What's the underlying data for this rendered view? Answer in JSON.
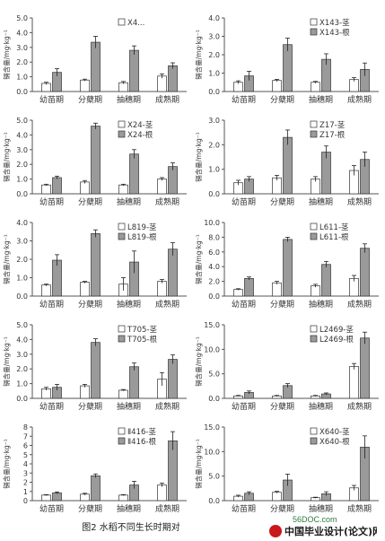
{
  "figure_caption": "图2 水稻不同生长时期对",
  "watermark_site": "56DOC.com",
  "watermark_logo": "中国毕业设计(论文)网",
  "colors": {
    "stem": "#ffffff",
    "root": "#9a9a9a",
    "axis": "#555555",
    "text": "#333333",
    "logo_red": "#c9171e"
  },
  "chart_data": [
    {
      "type": "bar",
      "ylabel": "镉含量/mg·kg⁻¹",
      "categories": [
        "幼苗期",
        "分蘖期",
        "抽穗期",
        "成熟期"
      ],
      "yticks": [
        0.0,
        1.0,
        2.0,
        3.0,
        4.0,
        5.0
      ],
      "ylim": [
        0,
        5
      ],
      "legend": [
        "X4..."
      ],
      "series": [
        {
          "name": "X4...",
          "values": [
            0.55,
            0.78,
            0.6,
            1.05
          ],
          "errors": [
            0.08,
            0.06,
            0.08,
            0.15
          ]
        },
        {
          "name": "",
          "values": [
            1.3,
            3.35,
            2.8,
            1.75
          ],
          "errors": [
            0.25,
            0.4,
            0.3,
            0.2
          ]
        }
      ]
    },
    {
      "type": "bar",
      "ylabel": "镉含量/mg·kg⁻¹",
      "categories": [
        "幼苗期",
        "分蘖期",
        "抽穗期",
        "成熟期"
      ],
      "yticks": [
        0.0,
        1.0,
        2.0,
        3.0,
        4.0
      ],
      "ylim": [
        0,
        4
      ],
      "legend": [
        "X143-茎",
        "X143-根"
      ],
      "series": [
        {
          "name": "X143-茎",
          "values": [
            0.5,
            0.6,
            0.5,
            0.65
          ],
          "errors": [
            0.08,
            0.06,
            0.05,
            0.1
          ]
        },
        {
          "name": "X143-根",
          "values": [
            0.85,
            2.55,
            1.75,
            1.2
          ],
          "errors": [
            0.25,
            0.35,
            0.3,
            0.35
          ]
        }
      ]
    },
    {
      "type": "bar",
      "ylabel": "镉含量/mg·kg⁻¹",
      "categories": [
        "幼苗期",
        "分蘖期",
        "抽穗期",
        "成熟期"
      ],
      "yticks": [
        0.0,
        1.0,
        2.0,
        3.0,
        4.0,
        5.0
      ],
      "ylim": [
        0,
        5
      ],
      "legend": [
        "X24-茎",
        "X24-根"
      ],
      "series": [
        {
          "name": "X24-茎",
          "values": [
            0.6,
            0.8,
            0.6,
            1.0
          ],
          "errors": [
            0.05,
            0.1,
            0.05,
            0.1
          ]
        },
        {
          "name": "X24-根",
          "values": [
            1.1,
            4.6,
            2.7,
            1.85
          ],
          "errors": [
            0.1,
            0.2,
            0.3,
            0.25
          ]
        }
      ]
    },
    {
      "type": "bar",
      "ylabel": "镉含量/mg·kg⁻¹",
      "categories": [
        "幼苗期",
        "分蘖期",
        "抽穗期",
        "成熟期"
      ],
      "yticks": [
        0.0,
        1.0,
        2.0,
        3.0
      ],
      "ylim": [
        0,
        3
      ],
      "legend": [
        "Z17-茎",
        "Z17-根"
      ],
      "series": [
        {
          "name": "Z17-茎",
          "values": [
            0.45,
            0.65,
            0.6,
            0.95
          ],
          "errors": [
            0.1,
            0.1,
            0.1,
            0.2
          ]
        },
        {
          "name": "Z17-根",
          "values": [
            0.6,
            2.3,
            1.7,
            1.4
          ],
          "errors": [
            0.1,
            0.3,
            0.25,
            0.3
          ]
        }
      ]
    },
    {
      "type": "bar",
      "ylabel": "镉含量/mg·kg⁻¹",
      "categories": [
        "幼苗期",
        "分蘖期",
        "抽穗期",
        "成熟期"
      ],
      "yticks": [
        0.0,
        1.0,
        2.0,
        3.0,
        4.0
      ],
      "ylim": [
        0,
        4
      ],
      "legend": [
        "L819-茎",
        "L819-根"
      ],
      "series": [
        {
          "name": "L819-茎",
          "values": [
            0.6,
            0.75,
            0.65,
            0.8
          ],
          "errors": [
            0.05,
            0.05,
            0.35,
            0.1
          ]
        },
        {
          "name": "L819-根",
          "values": [
            1.95,
            3.4,
            1.85,
            2.55
          ],
          "errors": [
            0.3,
            0.2,
            0.6,
            0.35
          ]
        }
      ]
    },
    {
      "type": "bar",
      "ylabel": "镉含量/mg·kg⁻¹",
      "categories": [
        "幼苗期",
        "分蘖期",
        "抽穗期",
        "成熟期"
      ],
      "yticks": [
        0.0,
        2.0,
        4.0,
        6.0,
        8.0,
        10.0
      ],
      "ylim": [
        0,
        10
      ],
      "legend": [
        "L611-茎",
        "L611-根"
      ],
      "series": [
        {
          "name": "L611-茎",
          "values": [
            0.9,
            1.8,
            1.4,
            2.4
          ],
          "errors": [
            0.1,
            0.2,
            0.2,
            0.4
          ]
        },
        {
          "name": "L611-根",
          "values": [
            2.4,
            7.7,
            4.3,
            6.5
          ],
          "errors": [
            0.2,
            0.3,
            0.4,
            0.6
          ]
        }
      ]
    },
    {
      "type": "bar",
      "ylabel": "镉含量/mg·kg⁻¹",
      "categories": [
        "幼苗期",
        "分蘖期",
        "抽穗期",
        "成熟期"
      ],
      "yticks": [
        0.0,
        1.0,
        2.0,
        3.0,
        4.0,
        5.0
      ],
      "ylim": [
        0,
        5
      ],
      "legend": [
        "T705-茎",
        "T705-根"
      ],
      "series": [
        {
          "name": "T705-茎",
          "values": [
            0.65,
            0.85,
            0.55,
            1.3
          ],
          "errors": [
            0.1,
            0.1,
            0.05,
            0.45
          ]
        },
        {
          "name": "T705-根",
          "values": [
            0.75,
            3.8,
            2.15,
            2.65
          ],
          "errors": [
            0.2,
            0.25,
            0.25,
            0.3
          ]
        }
      ]
    },
    {
      "type": "bar",
      "ylabel": "镉含量/mg·kg⁻¹",
      "categories": [
        "幼苗期",
        "分蘖期",
        "抽穗期",
        "成熟期"
      ],
      "yticks": [
        0.0,
        5.0,
        10.0,
        15.0
      ],
      "ylim": [
        0,
        15
      ],
      "legend": [
        "L2469-茎",
        "L2469-根"
      ],
      "series": [
        {
          "name": "L2469-茎",
          "values": [
            0.5,
            0.5,
            0.5,
            6.5
          ],
          "errors": [
            0.1,
            0.1,
            0.1,
            0.6
          ]
        },
        {
          "name": "L2469-根",
          "values": [
            1.2,
            2.6,
            0.9,
            12.3
          ],
          "errors": [
            0.3,
            0.4,
            0.2,
            1.2
          ]
        }
      ]
    },
    {
      "type": "bar",
      "ylabel": "镉含量/mg·kg⁻¹",
      "categories": [
        "幼苗期",
        "分蘖期",
        "抽穗期",
        "成熟期"
      ],
      "yticks": [
        0,
        1,
        2,
        3,
        4,
        5,
        6,
        7,
        8
      ],
      "ylim": [
        0,
        8
      ],
      "legend": [
        "Ⅱ416-茎",
        "Ⅱ416-根"
      ],
      "series": [
        {
          "name": "Ⅱ416-茎",
          "values": [
            0.6,
            0.7,
            0.6,
            1.7
          ],
          "errors": [
            0.05,
            0.1,
            0.05,
            0.2
          ]
        },
        {
          "name": "Ⅱ416-根",
          "values": [
            0.85,
            2.7,
            1.7,
            6.5
          ],
          "errors": [
            0.1,
            0.2,
            0.4,
            1.0
          ]
        }
      ]
    },
    {
      "type": "bar",
      "ylabel": "镉含量/mg·kg⁻¹",
      "categories": [
        "幼苗期",
        "分蘖期",
        "抽穗期",
        "成熟期"
      ],
      "yticks": [
        0.0,
        5.0,
        10.0,
        15.0
      ],
      "ylim": [
        0,
        15
      ],
      "legend": [
        "X640-茎",
        "X640-根"
      ],
      "series": [
        {
          "name": "X640-茎",
          "values": [
            0.9,
            1.7,
            0.6,
            2.6
          ],
          "errors": [
            0.2,
            0.2,
            0.1,
            0.5
          ]
        },
        {
          "name": "X640-根",
          "values": [
            1.5,
            4.2,
            1.4,
            10.9
          ],
          "errors": [
            0.3,
            1.2,
            0.4,
            2.3
          ]
        }
      ]
    }
  ]
}
